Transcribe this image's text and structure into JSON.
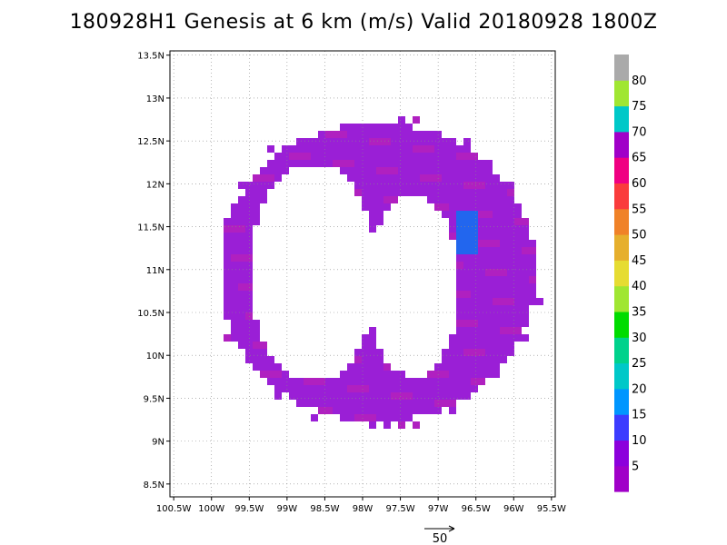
{
  "chart_data": {
    "type": "vector-map",
    "title": "180928H1 Genesis at 6 km (m/s) Valid 20180928  1800Z",
    "xlim": [
      -100.55,
      -95.45
    ],
    "ylim": [
      8.35,
      13.55
    ],
    "x_ticks": [
      -100.5,
      -100,
      -99.5,
      -99,
      -98.5,
      -98,
      -97.5,
      -97,
      -96.5,
      -96,
      -95.5
    ],
    "x_tick_labels": [
      "100.5W",
      "100W",
      "99.5W",
      "99W",
      "98.5W",
      "98W",
      "97.5W",
      "97W",
      "96.5W",
      "96W",
      "95.5W"
    ],
    "y_ticks": [
      8.5,
      9,
      9.5,
      10,
      10.5,
      11,
      11.5,
      12,
      12.5,
      13,
      13.5
    ],
    "y_tick_labels": [
      "8.5N",
      "9N",
      "9.5N",
      "10N",
      "10.5N",
      "11N",
      "11.5N",
      "12N",
      "12.5N",
      "13N",
      "13.5N"
    ],
    "grid": true,
    "colorbar": {
      "labels": [
        "5",
        "10",
        "15",
        "20",
        "25",
        "30",
        "35",
        "40",
        "45",
        "50",
        "55",
        "60",
        "65",
        "70",
        "75",
        "80"
      ],
      "colors": [
        "#a000c8",
        "#8c00dc",
        "#3c3cff",
        "#0096ff",
        "#00c8c8",
        "#00d28c",
        "#00dc00",
        "#a0e632",
        "#e6dc32",
        "#e6af2d",
        "#f08228",
        "#fa3c3c",
        "#f00082",
        "#a000c8",
        "#00c8c8",
        "#a0e632",
        "#aaaaaa"
      ]
    },
    "field": {
      "dominant_speed_range_ms": [
        5,
        10
      ],
      "dominant_color": "#9a1fd6",
      "max_speed_color": "#2266ee",
      "wind_direction": "southwesterly arrows circulating around an empty center"
    },
    "reference_vector": {
      "label": "50",
      "magnitude_ms": 50
    }
  }
}
